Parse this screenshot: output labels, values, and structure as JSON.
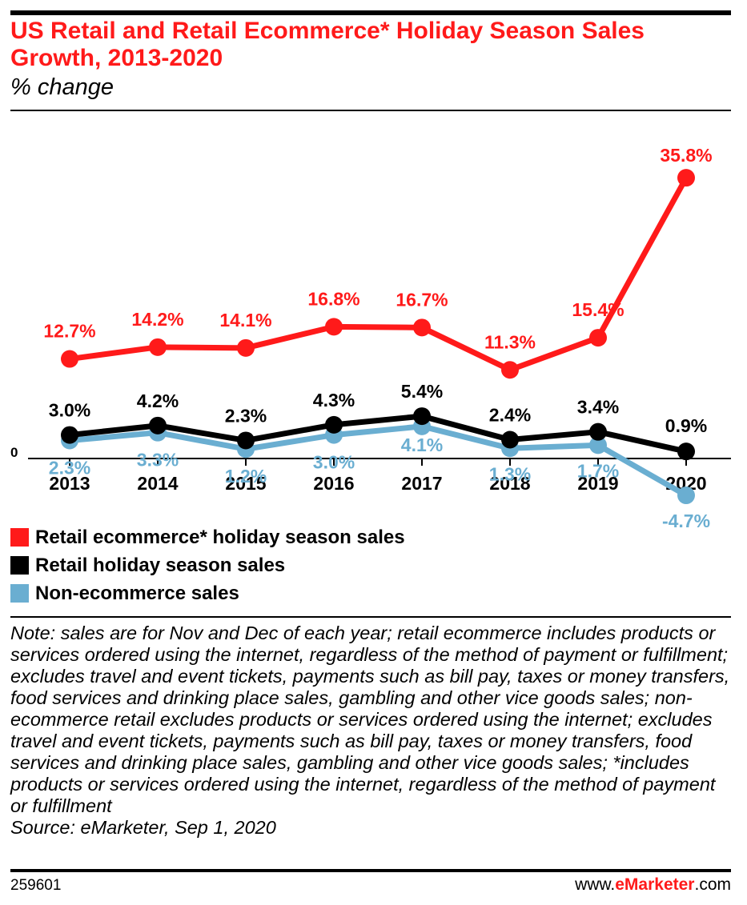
{
  "title": "US Retail and Retail Ecommerce* Holiday Season Sales Growth, 2013-2020",
  "subtitle": "% change",
  "chart_data": {
    "type": "line",
    "x": [
      "2013",
      "2014",
      "2015",
      "2016",
      "2017",
      "2018",
      "2019",
      "2020"
    ],
    "zero_label": "0",
    "ylim": [
      -5,
      36
    ],
    "series": [
      {
        "name": "Retail ecommerce* holiday season sales",
        "color": "#ff1a1a",
        "values": [
          12.7,
          14.2,
          14.1,
          16.8,
          16.7,
          11.3,
          15.4,
          35.8
        ],
        "labels": [
          "12.7%",
          "14.2%",
          "14.1%",
          "16.8%",
          "16.7%",
          "11.3%",
          "15.4%",
          "35.8%"
        ]
      },
      {
        "name": "Non-ecommerce sales",
        "color": "#6aaed1",
        "values": [
          2.3,
          3.3,
          1.2,
          3.0,
          4.1,
          1.3,
          1.7,
          -4.7
        ],
        "labels": [
          "2.3%",
          "3.3%",
          "1.2%",
          "3.0%",
          "4.1%",
          "1.3%",
          "1.7%",
          "-4.7%"
        ]
      },
      {
        "name": "Retail holiday season sales",
        "color": "#000000",
        "values": [
          3.0,
          4.2,
          2.3,
          4.3,
          5.4,
          2.4,
          3.4,
          0.9
        ],
        "labels": [
          "3.0%",
          "4.2%",
          "2.3%",
          "4.3%",
          "5.4%",
          "2.4%",
          "3.4%",
          "0.9%"
        ]
      }
    ],
    "legend": [
      {
        "label": "Retail ecommerce* holiday season sales",
        "color": "#ff1a1a"
      },
      {
        "label": "Retail holiday season sales",
        "color": "#000000"
      },
      {
        "label": "Non-ecommerce sales",
        "color": "#6aaed1"
      }
    ],
    "legend_position": "bottom-left"
  },
  "note": "Note: sales are for Nov and Dec of each year; retail ecommerce includes products or services ordered using the internet, regardless of the method of payment or fulfillment; excludes travel and event tickets, payments such as bill pay, taxes or money transfers, food services and drinking place sales, gambling and other vice goods sales; non-ecommerce retail excludes products or services ordered using the internet; excludes travel and event tickets, payments such as bill pay, taxes or money transfers, food services and drinking place sales, gambling and other vice goods sales; *includes products or services ordered using the internet, regardless of the method of payment or fulfillment",
  "source": "Source: eMarketer, Sep 1, 2020",
  "footer": {
    "chart_id": "259601",
    "brand_prefix": "www.",
    "brand_name": "eMarketer",
    "brand_suffix": ".com"
  }
}
